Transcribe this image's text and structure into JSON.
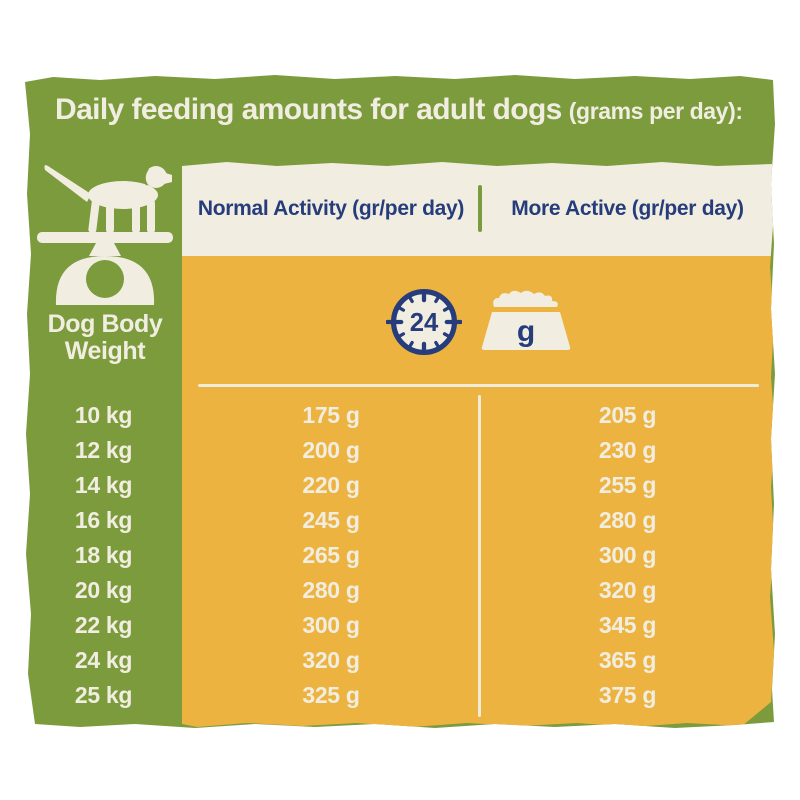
{
  "colors": {
    "green": "#7C9B3D",
    "yellow": "#EDB340",
    "cream": "#F1EEE1",
    "navy": "#263C7B",
    "background": "#FFFFFF"
  },
  "title": {
    "main": "Daily feeding amounts for adult dogs",
    "suffix": "(grams per day):"
  },
  "header": {
    "normal": "Normal Activity (gr/per day)",
    "active": "More Active (gr/per day)"
  },
  "sidebar": {
    "label_line1": "Dog Body",
    "label_line2": "Weight",
    "icon": "dog-on-scale-icon"
  },
  "icons": {
    "clock": "clock-24h-icon",
    "clock_value": "24",
    "bowl": "food-bowl-icon",
    "bowl_unit": "g"
  },
  "chart_data": {
    "type": "table",
    "title": "Daily feeding amounts for adult dogs (grams per day):",
    "columns": [
      "Dog Body Weight",
      "Normal Activity (gr/per day)",
      "More Active (gr/per day)"
    ],
    "rows": [
      {
        "weight": "10 kg",
        "normal": "175 g",
        "active": "205 g"
      },
      {
        "weight": "12 kg",
        "normal": "200 g",
        "active": "230 g"
      },
      {
        "weight": "14 kg",
        "normal": "220 g",
        "active": "255 g"
      },
      {
        "weight": "16 kg",
        "normal": "245 g",
        "active": "280 g"
      },
      {
        "weight": "18 kg",
        "normal": "265 g",
        "active": "300 g"
      },
      {
        "weight": "20 kg",
        "normal": "280 g",
        "active": "320 g"
      },
      {
        "weight": "22 kg",
        "normal": "300 g",
        "active": "345 g"
      },
      {
        "weight": "24 kg",
        "normal": "320 g",
        "active": "365 g"
      },
      {
        "weight": "25 kg",
        "normal": "325 g",
        "active": "375 g"
      }
    ]
  }
}
